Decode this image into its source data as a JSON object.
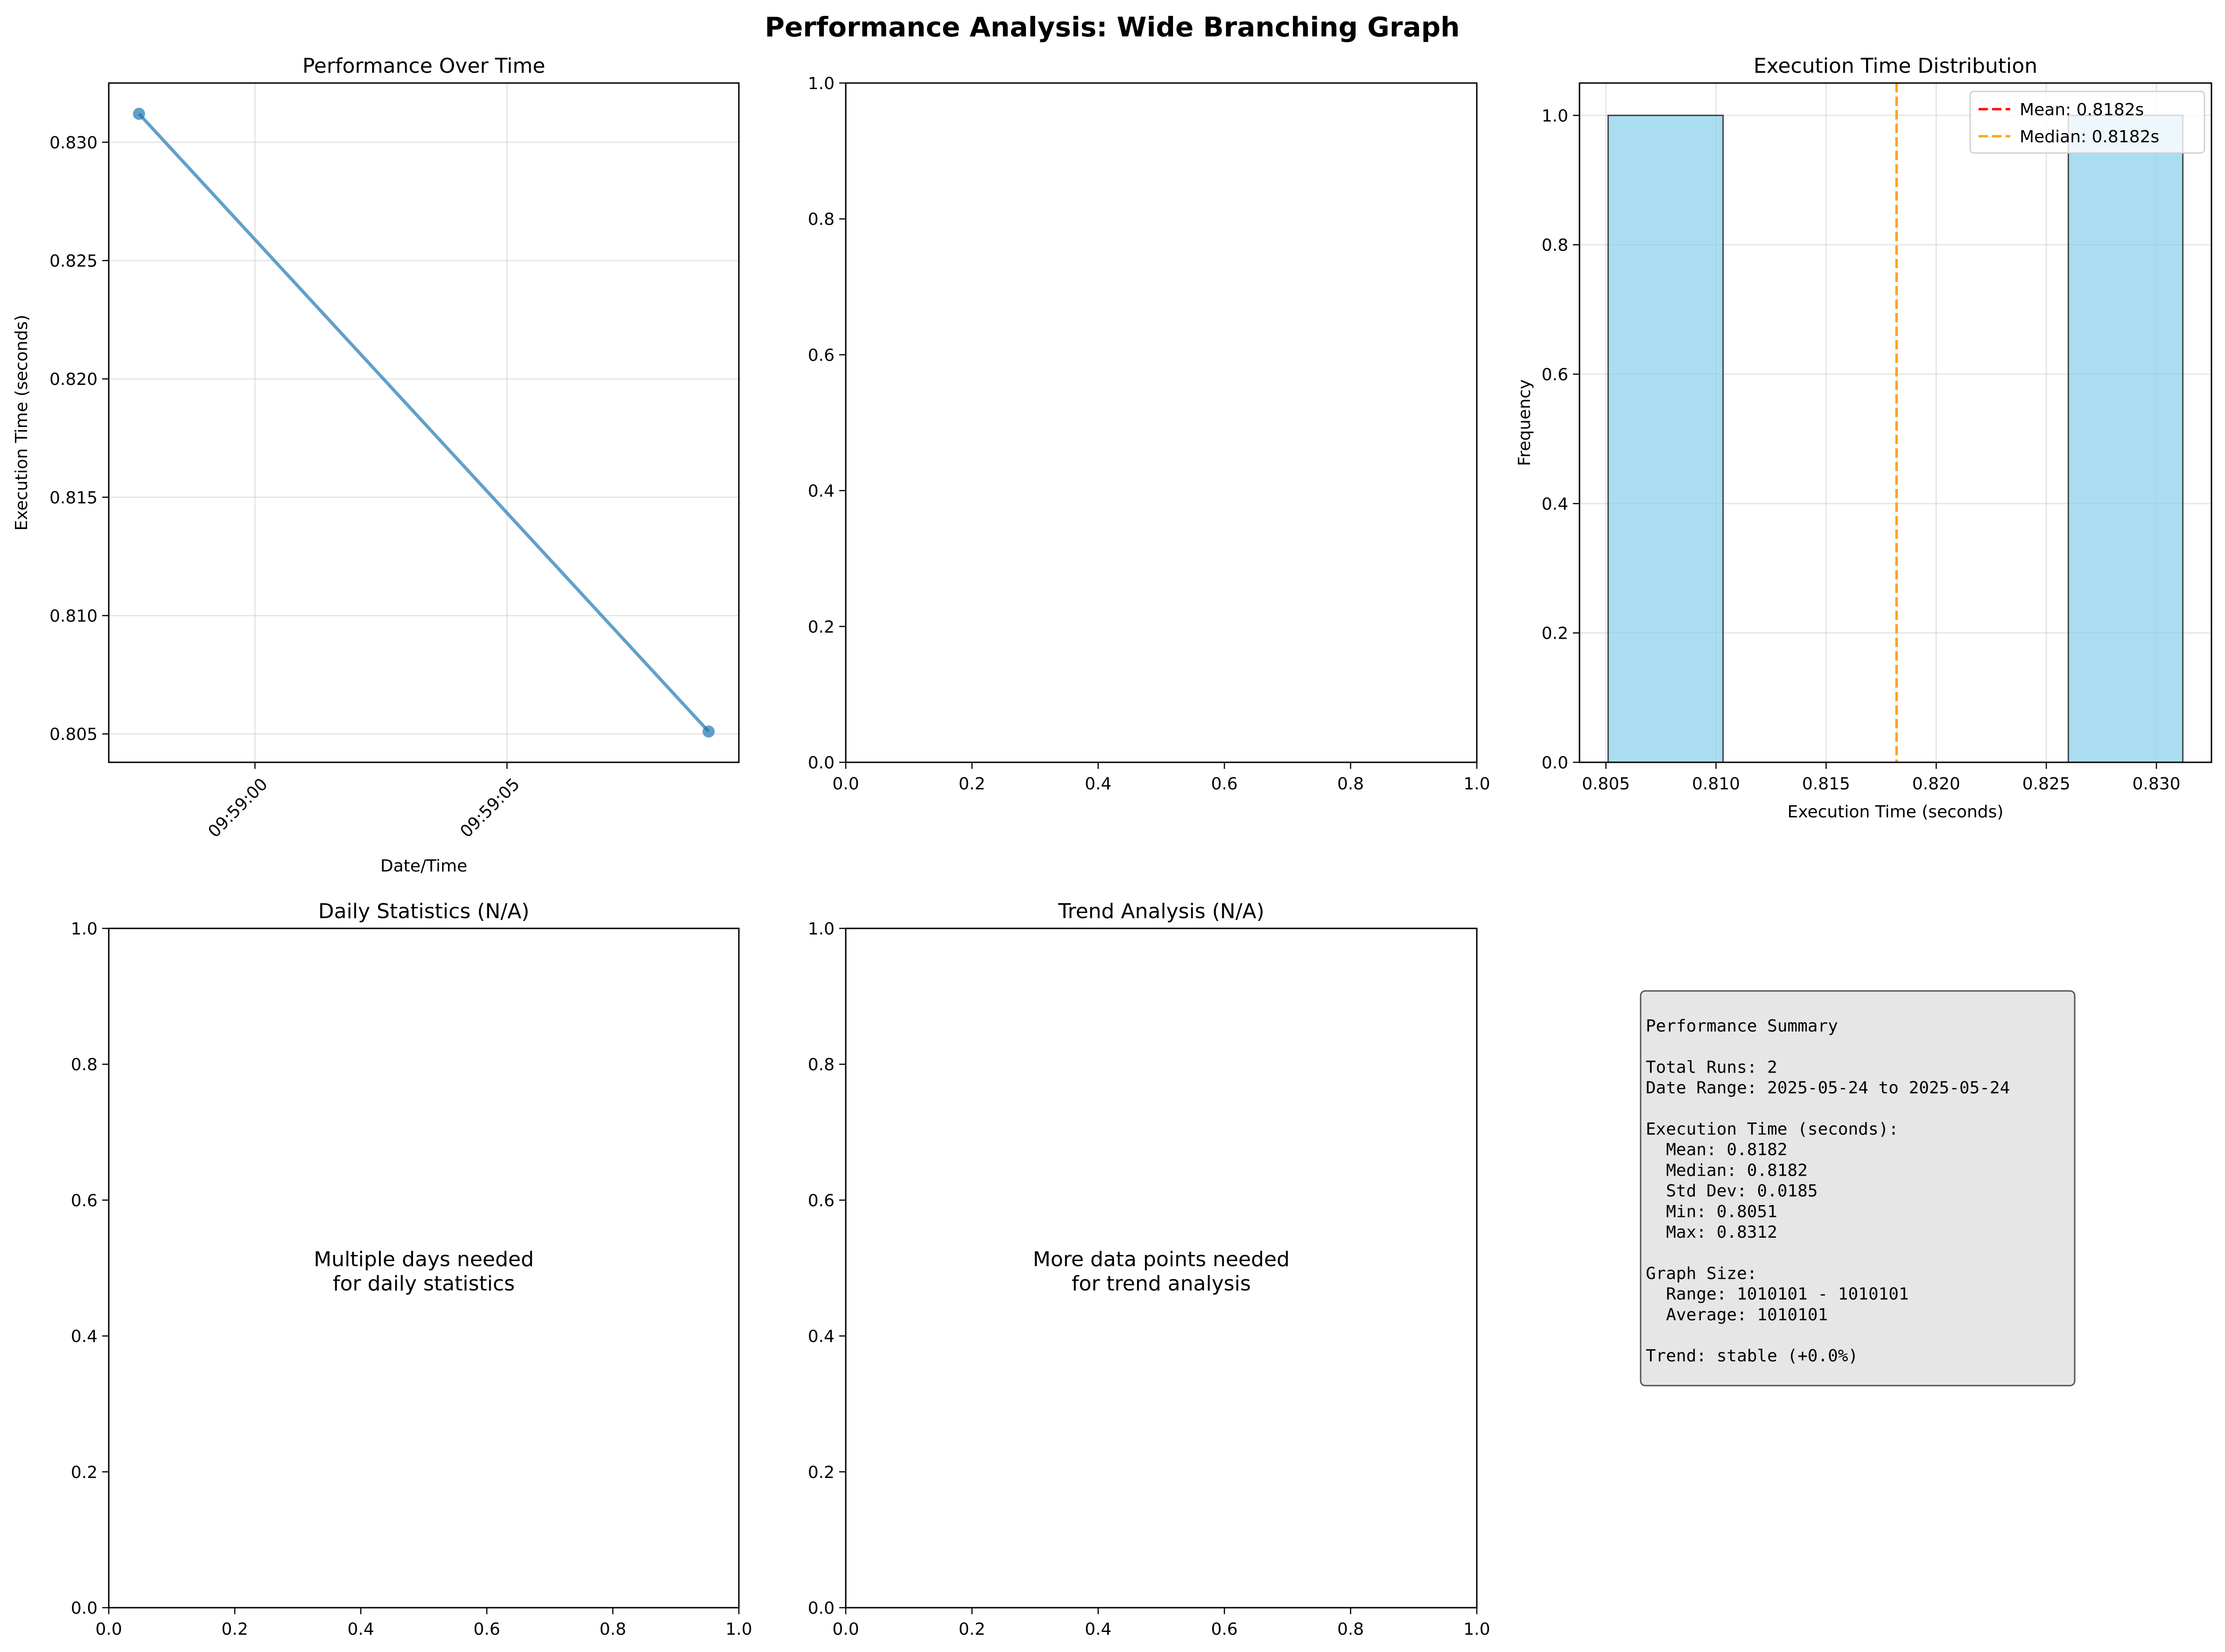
{
  "figure": {
    "title": "Performance Analysis: Wide Branching Graph"
  },
  "chart_data": [
    {
      "id": "perf",
      "type": "line",
      "title": "Performance Over Time",
      "xlabel": "Date/Time",
      "ylabel": "Execution Time (seconds)",
      "series": [
        {
          "x": [
            "09:58:57.7",
            "09:59:09.0"
          ],
          "values": [
            0.8312,
            0.8051
          ],
          "color": "#1f77b4"
        }
      ],
      "x_ticks": [
        "09:59:00",
        "09:59:05"
      ],
      "y_ticks": [
        "0.805",
        "0.810",
        "0.815",
        "0.820",
        "0.825",
        "0.830"
      ],
      "ylim": [
        0.8038,
        0.8325
      ],
      "grid": true
    },
    {
      "id": "empty",
      "type": "line",
      "title": "",
      "xlim": [
        0,
        1
      ],
      "ylim": [
        0,
        1
      ],
      "x_ticks": [
        "0.0",
        "0.2",
        "0.4",
        "0.6",
        "0.8",
        "1.0"
      ],
      "y_ticks": [
        "0.0",
        "0.2",
        "0.4",
        "0.6",
        "0.8",
        "1.0"
      ],
      "grid": false
    },
    {
      "id": "hist",
      "type": "bar",
      "title": "Execution Time Distribution",
      "xlabel": "Execution Time (seconds)",
      "ylabel": "Frequency",
      "xlim": [
        0.8038,
        0.8325
      ],
      "ylim": [
        0,
        1.05
      ],
      "bins": [
        {
          "from": 0.8051,
          "to": 0.81032,
          "count": 1
        },
        {
          "from": 0.826,
          "to": 0.8312,
          "count": 1
        }
      ],
      "bar_color": "#87ceeb",
      "mean": 0.8182,
      "median": 0.8182,
      "x_ticks": [
        "0.805",
        "0.810",
        "0.815",
        "0.820",
        "0.825",
        "0.830"
      ],
      "y_ticks": [
        "0.0",
        "0.2",
        "0.4",
        "0.6",
        "0.8",
        "1.0"
      ],
      "legend": {
        "position": "upper-right",
        "items": [
          {
            "label": "Mean: 0.8182s",
            "color": "#ff0000"
          },
          {
            "label": "Median: 0.8182s",
            "color": "#ffa500"
          }
        ]
      },
      "grid": true
    },
    {
      "id": "daily",
      "type": "line",
      "title": "Daily Statistics (N/A)",
      "message": [
        "Multiple days needed",
        "for daily statistics"
      ],
      "xlim": [
        0,
        1
      ],
      "ylim": [
        0,
        1
      ],
      "x_ticks": [
        "0.0",
        "0.2",
        "0.4",
        "0.6",
        "0.8",
        "1.0"
      ],
      "y_ticks": [
        "0.0",
        "0.2",
        "0.4",
        "0.6",
        "0.8",
        "1.0"
      ]
    },
    {
      "id": "trend",
      "type": "line",
      "title": "Trend Analysis (N/A)",
      "message": [
        "More data points needed",
        "for trend analysis"
      ],
      "xlim": [
        0,
        1
      ],
      "ylim": [
        0,
        1
      ],
      "x_ticks": [
        "0.0",
        "0.2",
        "0.4",
        "0.6",
        "0.8",
        "1.0"
      ],
      "y_ticks": [
        "0.0",
        "0.2",
        "0.4",
        "0.6",
        "0.8",
        "1.0"
      ]
    }
  ],
  "summary": {
    "lines": [
      "Performance Summary",
      "",
      "Total Runs: 2",
      "Date Range: 2025-05-24 to 2025-05-24",
      "",
      "Execution Time (seconds):",
      "  Mean: 0.8182",
      "  Median: 0.8182",
      "  Std Dev: 0.0185",
      "  Min: 0.8051",
      "  Max: 0.8312",
      "",
      "Graph Size:",
      "  Range: 1010101 - 1010101",
      "  Average: 1010101",
      "",
      "Trend: stable (+0.0%)"
    ]
  }
}
